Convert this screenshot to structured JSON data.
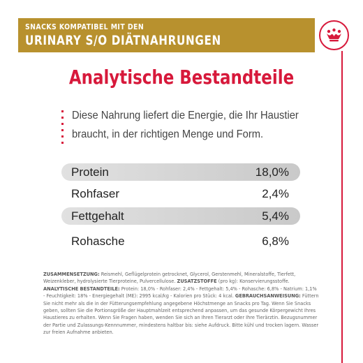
{
  "banner": {
    "line1": "SNACKS KOMPATIBEL MIT DEN",
    "line2": "URINARY S/O DIÄTNAHRUNGEN"
  },
  "logo": {
    "icon": "crown-icon",
    "color": "#d7193b"
  },
  "colors": {
    "brand_red": "#d7193b",
    "banner_gold": "#b8912e"
  },
  "title": "Analytische Bestandteile",
  "intro": "Diese Nahrung liefert die Energie, die Ihr Haustier braucht, in der richtigen Menge und Form.",
  "nutrients": [
    {
      "name": "Protein",
      "value": "18,0%"
    },
    {
      "name": "Rohfaser",
      "value": "2,4%"
    },
    {
      "name": "Fettgehalt",
      "value": "5,4%"
    },
    {
      "name": "Rohasche",
      "value": "6,8%"
    }
  ],
  "footer": {
    "composition_label": "ZUSAMMENSETZUNG:",
    "composition_text": "Reismehl, Geflügelprotein getrocknet, Glycerol, Gerstenmehl, Mineralstoffe, Tierfett, Weizenkleber, hydrolysierte Tierproteine, Pulvercellulose.",
    "additives_label": "ZUSATZSTOFFE",
    "additives_text": "(pro kg): Konservierungsstoffe.",
    "analytical_label": "ANALYTISCHE BESTANDTEILE:",
    "analytical_text": "Protein: 18,0% - Rohfaser: 2,4% - Fettgehalt: 5,4% - Rohasche: 6,8% - Natrium: 1,1% - Feuchtigkeit: 18% - Energiegehalt (ME): 2995 kcal/kg - Kalorien pro Stück: 4 kcal.",
    "usage_label": "GEBRAUCHSANWEISUNG:",
    "usage_text": "Füttern Sie nicht mehr als die in der Fütterungsempfehlung angegebene Höchstmenge an Snacks pro Tag. Wenn Sie Snacks geben, sollten Sie die Portionsgröße der Hauptmahlzeit entsprechend anpassen, um das gesunde Körpergewicht Ihres Haustieres zu erhalten. Wenn Sie Fragen haben, wenden Sie sich an Ihren Tierarzt oder Ihre Tierärztin. Bezugsnummer der Partie und Zulassungs-Kennnummer, mindestens haltbar bis: siehe Aufdruck. Bitte kühl und trocken lagern. Wasser zur freien Aufnahme anbieten."
  }
}
